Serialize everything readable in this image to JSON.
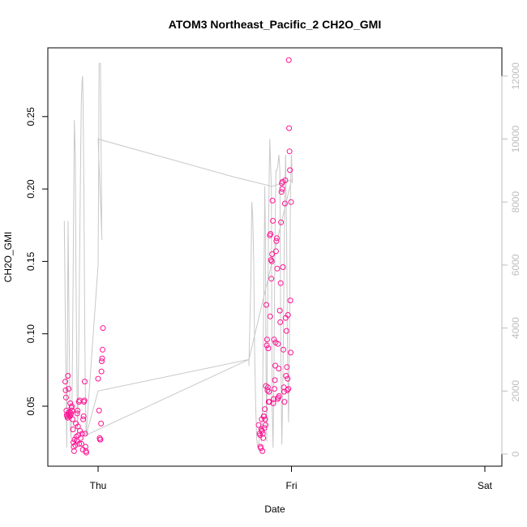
{
  "chart_data": {
    "type": "scatter",
    "title": "ATOM3 Northeast_Pacific_2 CH2O_GMI",
    "xlabel": "Date",
    "ylabel": "CH2O_GMI",
    "x_ticks": [
      "Thu",
      "Fri",
      "Sat"
    ],
    "x_range_days": [
      -0.2,
      2.05
    ],
    "ylim": [
      0.012,
      0.293
    ],
    "y_ticks": [
      0.05,
      0.1,
      0.15,
      0.2,
      0.25
    ],
    "y2lim": [
      -600,
      12400
    ],
    "y2_ticks": [
      0,
      2000,
      4000,
      6000,
      8000,
      10000,
      12000
    ],
    "colors": {
      "points": "#ff1493",
      "altitude_line": "#c8c8c8",
      "axes": "#000000",
      "right_axis": "#bdbdbd"
    },
    "series": [
      {
        "marker": "circle",
        "color": "#ff1493",
        "points": [
          [
            -0.17,
            0.067
          ],
          [
            -0.168,
            0.061
          ],
          [
            -0.166,
            0.056
          ],
          [
            -0.164,
            0.047
          ],
          [
            -0.162,
            0.044
          ],
          [
            -0.16,
            0.043
          ],
          [
            -0.158,
            0.042
          ],
          [
            -0.156,
            0.071
          ],
          [
            -0.154,
            0.045
          ],
          [
            -0.152,
            0.062
          ],
          [
            -0.15,
            0.044
          ],
          [
            -0.148,
            0.046
          ],
          [
            -0.146,
            0.043
          ],
          [
            -0.144,
            0.052
          ],
          [
            -0.142,
            0.044
          ],
          [
            -0.14,
            0.045
          ],
          [
            -0.138,
            0.049
          ],
          [
            -0.136,
            0.05
          ],
          [
            -0.134,
            0.047
          ],
          [
            -0.132,
            0.041
          ],
          [
            -0.13,
            0.034
          ],
          [
            -0.128,
            0.025
          ],
          [
            -0.126,
            0.022
          ],
          [
            -0.124,
            0.019
          ],
          [
            -0.122,
            0.027
          ],
          [
            -0.118,
            0.023
          ],
          [
            -0.115,
            0.038
          ],
          [
            -0.112,
            0.029
          ],
          [
            -0.11,
            0.026
          ],
          [
            -0.108,
            0.045
          ],
          [
            -0.106,
            0.047
          ],
          [
            -0.104,
            0.036
          ],
          [
            -0.102,
            0.03
          ],
          [
            -0.1,
            0.053
          ],
          [
            -0.098,
            0.024
          ],
          [
            -0.096,
            0.054
          ],
          [
            -0.094,
            0.033
          ],
          [
            -0.09,
            0.028
          ],
          [
            -0.086,
            0.024
          ],
          [
            -0.082,
            0.031
          ],
          [
            -0.079,
            0.02
          ],
          [
            -0.077,
            0.041
          ],
          [
            -0.075,
            0.043
          ],
          [
            -0.073,
            0.053
          ],
          [
            -0.071,
            0.054
          ],
          [
            -0.069,
            0.067
          ],
          [
            -0.067,
            0.031
          ],
          [
            -0.065,
            0.022
          ],
          [
            -0.063,
            0.019
          ],
          [
            -0.061,
            0.018
          ],
          [
            0.0,
            0.069
          ],
          [
            0.005,
            0.047
          ],
          [
            0.008,
            0.028
          ],
          [
            0.01,
            0.027
          ],
          [
            0.012,
            0.027
          ],
          [
            0.015,
            0.038
          ],
          [
            0.017,
            0.074
          ],
          [
            0.019,
            0.081
          ],
          [
            0.021,
            0.083
          ],
          [
            0.023,
            0.089
          ],
          [
            0.025,
            0.104
          ],
          [
            0.83,
            0.037
          ],
          [
            0.835,
            0.031
          ],
          [
            0.838,
            0.03
          ],
          [
            0.84,
            0.022
          ],
          [
            0.842,
            0.021
          ],
          [
            0.844,
            0.034
          ],
          [
            0.846,
            0.041
          ],
          [
            0.848,
            0.033
          ],
          [
            0.85,
            0.019
          ],
          [
            0.852,
            0.031
          ],
          [
            0.854,
            0.028
          ],
          [
            0.856,
            0.043
          ],
          [
            0.858,
            0.043
          ],
          [
            0.86,
            0.035
          ],
          [
            0.862,
            0.048
          ],
          [
            0.864,
            0.041
          ],
          [
            0.866,
            0.037
          ],
          [
            0.868,
            0.064
          ],
          [
            0.87,
            0.12
          ],
          [
            0.872,
            0.092
          ],
          [
            0.874,
            0.096
          ],
          [
            0.876,
            0.061
          ],
          [
            0.878,
            0.063
          ],
          [
            0.88,
            0.09
          ],
          [
            0.882,
            0.053
          ],
          [
            0.884,
            0.06
          ],
          [
            0.886,
            0.053
          ],
          [
            0.888,
            0.168
          ],
          [
            0.89,
            0.112
          ],
          [
            0.892,
            0.169
          ],
          [
            0.894,
            0.151
          ],
          [
            0.896,
            0.138
          ],
          [
            0.898,
            0.15
          ],
          [
            0.9,
            0.155
          ],
          [
            0.902,
            0.192
          ],
          [
            0.904,
            0.178
          ],
          [
            0.906,
            0.052
          ],
          [
            0.908,
            0.055
          ],
          [
            0.91,
            0.096
          ],
          [
            0.912,
            0.062
          ],
          [
            0.914,
            0.068
          ],
          [
            0.916,
            0.078
          ],
          [
            0.918,
            0.094
          ],
          [
            0.92,
            0.157
          ],
          [
            0.922,
            0.164
          ],
          [
            0.924,
            0.166
          ],
          [
            0.926,
            0.145
          ],
          [
            0.928,
            0.055
          ],
          [
            0.93,
            0.093
          ],
          [
            0.932,
            0.056
          ],
          [
            0.934,
            0.076
          ],
          [
            0.936,
            0.057
          ],
          [
            0.94,
            0.116
          ],
          [
            0.942,
            0.108
          ],
          [
            0.944,
            0.135
          ],
          [
            0.946,
            0.177
          ],
          [
            0.948,
            0.198
          ],
          [
            0.95,
            0.204
          ],
          [
            0.952,
            0.2
          ],
          [
            0.954,
            0.205
          ],
          [
            0.956,
            0.146
          ],
          [
            0.958,
            0.089
          ],
          [
            0.96,
            0.063
          ],
          [
            0.962,
            0.06
          ],
          [
            0.964,
            0.053
          ],
          [
            0.966,
            0.19
          ],
          [
            0.968,
            0.206
          ],
          [
            0.97,
            0.111
          ],
          [
            0.972,
            0.071
          ],
          [
            0.974,
            0.102
          ],
          [
            0.976,
            0.077
          ],
          [
            0.978,
            0.061
          ],
          [
            0.98,
            0.069
          ],
          [
            0.982,
            0.113
          ],
          [
            0.984,
            0.062
          ],
          [
            0.986,
            0.289
          ],
          [
            0.988,
            0.242
          ],
          [
            0.99,
            0.226
          ],
          [
            0.992,
            0.213
          ],
          [
            0.994,
            0.123
          ],
          [
            0.996,
            0.087
          ],
          [
            0.998,
            0.191
          ]
        ]
      },
      {
        "type": "line",
        "axis": "right",
        "color": "#c8c8c8",
        "points": [
          [
            -0.175,
            7400
          ],
          [
            -0.168,
            3500
          ],
          [
            -0.162,
            200
          ],
          [
            -0.155,
            7400
          ],
          [
            -0.15,
            4000
          ],
          [
            -0.145,
            1000
          ],
          [
            -0.14,
            500
          ],
          [
            -0.135,
            1500
          ],
          [
            -0.13,
            5000
          ],
          [
            -0.126,
            8000
          ],
          [
            -0.123,
            10600
          ],
          [
            -0.118,
            9500
          ],
          [
            -0.115,
            6000
          ],
          [
            -0.11,
            2500
          ],
          [
            -0.106,
            600
          ],
          [
            -0.1,
            3500
          ],
          [
            -0.095,
            6500
          ],
          [
            -0.09,
            9500
          ],
          [
            -0.087,
            11200
          ],
          [
            -0.083,
            11800
          ],
          [
            -0.08,
            12000
          ],
          [
            -0.077,
            11000
          ],
          [
            -0.073,
            8000
          ],
          [
            -0.069,
            4000
          ],
          [
            -0.065,
            1500
          ],
          [
            -0.062,
            600
          ],
          [
            0.0,
            6000
          ],
          [
            0.003,
            9000
          ],
          [
            0.005,
            12400
          ],
          [
            0.012,
            12400
          ],
          [
            0.015,
            10000
          ],
          [
            0.017,
            8500
          ],
          [
            0.019,
            7000
          ],
          [
            0.02,
            6800
          ],
          [
            0.0,
            10000
          ],
          [
            0.7,
            8800
          ],
          [
            0.9,
            8500
          ],
          [
            1.0,
            8700
          ],
          [
            0.78,
            3000
          ],
          [
            -0.062,
            600
          ]
        ],
        "flight_track": [
          [
            -0.062,
            600
          ],
          [
            0.0,
            2000
          ],
          [
            0.78,
            3000
          ],
          [
            0.78,
            2800
          ],
          [
            0.79,
            5500
          ],
          [
            0.795,
            8000
          ],
          [
            0.8,
            7500
          ],
          [
            0.805,
            6000
          ],
          [
            0.81,
            3000
          ],
          [
            0.815,
            1500
          ],
          [
            0.82,
            500
          ],
          [
            0.825,
            200
          ],
          [
            0.83,
            300
          ],
          [
            0.835,
            500
          ],
          [
            0.84,
            1000
          ],
          [
            0.845,
            400
          ],
          [
            0.85,
            1500
          ],
          [
            0.855,
            4000
          ],
          [
            0.86,
            7000
          ],
          [
            0.862,
            8500
          ],
          [
            0.865,
            7000
          ],
          [
            0.868,
            3000
          ],
          [
            0.872,
            400
          ],
          [
            0.875,
            3500
          ],
          [
            0.88,
            6500
          ],
          [
            0.885,
            9000
          ],
          [
            0.888,
            10000
          ],
          [
            0.89,
            9500
          ],
          [
            0.893,
            9000
          ],
          [
            0.896,
            8500
          ],
          [
            0.9,
            1500
          ],
          [
            0.905,
            200
          ],
          [
            0.91,
            3000
          ],
          [
            0.915,
            7000
          ],
          [
            0.92,
            9000
          ],
          [
            0.925,
            9000
          ],
          [
            0.93,
            9200
          ],
          [
            0.935,
            9500
          ],
          [
            0.94,
            9000
          ],
          [
            0.945,
            3000
          ],
          [
            0.95,
            300
          ],
          [
            0.955,
            2000
          ],
          [
            0.96,
            5000
          ],
          [
            0.965,
            8000
          ],
          [
            0.97,
            9500
          ],
          [
            0.975,
            7000
          ],
          [
            0.98,
            3000
          ],
          [
            0.985,
            1000
          ],
          [
            0.99,
            4000
          ],
          [
            0.995,
            8500
          ],
          [
            1.0,
            9500
          ],
          [
            1.005,
            8600
          ]
        ]
      }
    ]
  }
}
